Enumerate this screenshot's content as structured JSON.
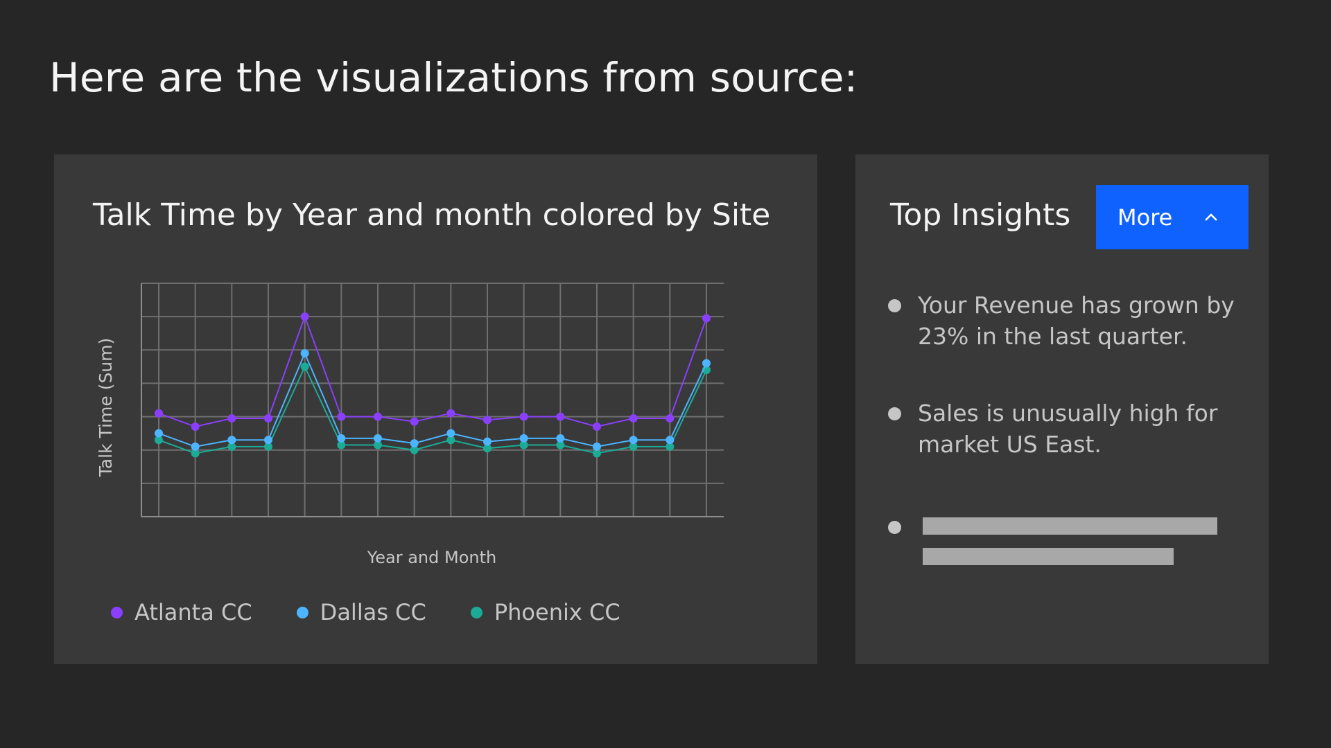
{
  "page": {
    "heading": "Here are the visualizations from source:"
  },
  "chart_card": {
    "title": "Talk Time by Year and month colored by Site"
  },
  "chart_data": {
    "type": "line",
    "title": "Talk Time by Year and month colored by Site",
    "xlabel": "Year and Month",
    "ylabel": "Talk Time (Sum)",
    "x": [
      1,
      2,
      3,
      4,
      5,
      6,
      7,
      8,
      9,
      10,
      11,
      12,
      13,
      14,
      15,
      16
    ],
    "ylim": [
      0,
      7
    ],
    "grid": true,
    "legend_position": "bottom-left",
    "series": [
      {
        "name": "Atlanta CC",
        "color": "#8a3ffc",
        "values": [
          3.1,
          2.7,
          2.95,
          2.95,
          6.0,
          3.0,
          3.0,
          2.85,
          3.1,
          2.9,
          3.0,
          3.0,
          2.7,
          2.95,
          2.95,
          5.95
        ]
      },
      {
        "name": "Dallas CC",
        "color": "#4db4ff",
        "values": [
          2.5,
          2.1,
          2.3,
          2.3,
          4.9,
          2.35,
          2.35,
          2.2,
          2.5,
          2.25,
          2.35,
          2.35,
          2.1,
          2.3,
          2.3,
          4.6
        ]
      },
      {
        "name": "Phoenix CC",
        "color": "#1cab96",
        "values": [
          2.3,
          1.9,
          2.1,
          2.1,
          4.5,
          2.15,
          2.15,
          2.0,
          2.3,
          2.05,
          2.15,
          2.15,
          1.9,
          2.1,
          2.1,
          4.4
        ]
      }
    ]
  },
  "insights": {
    "title": "Top Insights",
    "more_button_label": "More",
    "more_button_icon": "chevron-up-icon",
    "items": [
      "Your Revenue has grown by 23% in the last quarter.",
      "Sales is unusually high for market US East."
    ],
    "loading_placeholder_lines": [
      0.94,
      0.8
    ]
  },
  "colors": {
    "background": "#262626",
    "card": "#393939",
    "accent": "#0f62fe",
    "text_primary": "#f4f4f4",
    "text_secondary": "#c6c6c6"
  }
}
